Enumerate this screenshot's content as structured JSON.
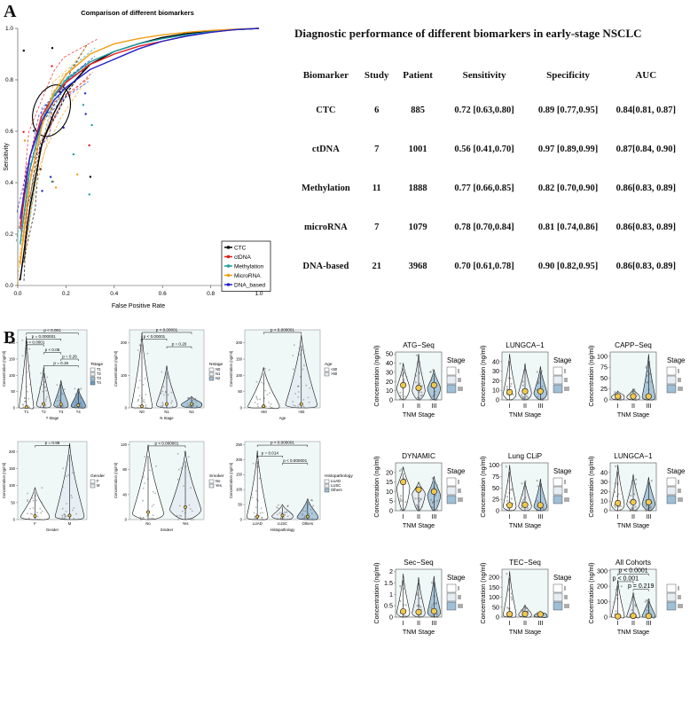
{
  "panel_labels": {
    "a": "A",
    "b": "B"
  },
  "roc": {
    "title": "Comparison of different biomarkers",
    "xlabel": "False Positive Rate",
    "ylabel": "Sensitivity",
    "xticks": [
      "0.0",
      "0.2",
      "0.4",
      "0.6",
      "0.8",
      "1.0"
    ],
    "yticks": [
      "0.0",
      "0.2",
      "0.4",
      "0.6",
      "0.8",
      "1.0"
    ],
    "legend": [
      {
        "label": "CTC",
        "color": "#000000"
      },
      {
        "label": "ctDNA",
        "color": "#e41a1c"
      },
      {
        "label": "Methylation",
        "color": "#1b9e9e"
      },
      {
        "label": "MicroRNA",
        "color": "#f39c12"
      },
      {
        "label": "DNA_based",
        "color": "#2222cc"
      }
    ]
  },
  "table": {
    "title": "Diagnostic performance of different biomarkers in early-stage NSCLC",
    "headers": [
      "Biomarker",
      "Study",
      "Patient",
      "Sensitivity",
      "Specificity",
      "AUC"
    ],
    "rows": [
      [
        "CTC",
        "6",
        "885",
        "0.72 [0.63,0.80]",
        "0.89 [0.77,0.95]",
        "0.84[0.81, 0.87]"
      ],
      [
        "ctDNA",
        "7",
        "1001",
        "0.56 [0.41,0.70]",
        "0.97 [0.89,0.99]",
        "0.87[0.84, 0.90]"
      ],
      [
        "Methylation",
        "11",
        "1888",
        "0.77 [0.66,0.85]",
        "0.82 [0.70,0.90]",
        "0.86[0.83, 0.89]"
      ],
      [
        "microRNA",
        "7",
        "1079",
        "0.78 [0.70,0.84]",
        "0.81 [0.74,0.86]",
        "0.86[0.83, 0.89]"
      ],
      [
        "DNA-based",
        "21",
        "3968",
        "0.70 [0.61,0.78]",
        "0.90 [0.82,0.95]",
        "0.86[0.83, 0.89]"
      ]
    ]
  },
  "chart_data": [
    {
      "type": "line",
      "title": "Comparison of different biomarkers",
      "xlabel": "False Positive Rate",
      "ylabel": "Sensitivity",
      "xlim": [
        0,
        1
      ],
      "ylim": [
        0,
        1
      ],
      "series": [
        {
          "name": "CTC",
          "color": "#000000",
          "x": [
            0.01,
            0.05,
            0.1,
            0.15,
            0.2,
            0.3,
            0.4,
            0.5,
            0.6,
            0.7,
            0.8,
            0.9,
            1.0
          ],
          "y": [
            0.02,
            0.3,
            0.55,
            0.67,
            0.76,
            0.86,
            0.91,
            0.94,
            0.965,
            0.98,
            0.99,
            0.995,
            1.0
          ]
        },
        {
          "name": "ctDNA",
          "color": "#e41a1c",
          "x": [
            0.01,
            0.05,
            0.1,
            0.15,
            0.2,
            0.3,
            0.4,
            0.5,
            0.6,
            0.7,
            0.8,
            0.9,
            1.0
          ],
          "y": [
            0.22,
            0.5,
            0.66,
            0.74,
            0.79,
            0.86,
            0.9,
            0.93,
            0.95,
            0.97,
            0.985,
            0.995,
            1.0
          ]
        },
        {
          "name": "Methylation",
          "color": "#1b9e9e",
          "x": [
            0.01,
            0.05,
            0.1,
            0.15,
            0.2,
            0.3,
            0.4,
            0.5,
            0.6,
            0.7,
            0.8,
            0.9,
            1.0
          ],
          "y": [
            0.16,
            0.45,
            0.64,
            0.74,
            0.8,
            0.87,
            0.91,
            0.94,
            0.96,
            0.975,
            0.987,
            0.995,
            1.0
          ]
        },
        {
          "name": "MicroRNA",
          "color": "#f39c12",
          "x": [
            0.01,
            0.05,
            0.1,
            0.15,
            0.2,
            0.3,
            0.4,
            0.5,
            0.6,
            0.7,
            0.8,
            0.9,
            1.0
          ],
          "y": [
            0.08,
            0.4,
            0.62,
            0.75,
            0.82,
            0.9,
            0.94,
            0.96,
            0.975,
            0.985,
            0.992,
            0.997,
            1.0
          ]
        },
        {
          "name": "DNA_based",
          "color": "#2222cc",
          "x": [
            0.01,
            0.05,
            0.1,
            0.15,
            0.2,
            0.3,
            0.4,
            0.5,
            0.6,
            0.7,
            0.8,
            0.9,
            1.0
          ],
          "y": [
            0.26,
            0.5,
            0.64,
            0.72,
            0.77,
            0.84,
            0.88,
            0.92,
            0.95,
            0.97,
            0.985,
            0.995,
            1.0
          ]
        }
      ]
    },
    {
      "type": "violin",
      "facets": [
        {
          "id": "tstage",
          "ylabel": "Concentration (ng/ml)",
          "xlabel": "T Stage",
          "categories": [
            "T1",
            "T2",
            "T3",
            "T4"
          ],
          "ylim": [
            0,
            240
          ],
          "yticks": [
            0,
            50,
            100,
            150,
            200
          ],
          "medians": [
            2,
            12,
            11,
            8
          ],
          "tops": [
            220,
            125,
            85,
            60
          ],
          "legend_title": "Tstage",
          "legend": [
            "T1",
            "T2",
            "T3",
            "T4"
          ],
          "pvalues": [
            {
              "label": "p < 0.001",
              "from": 0,
              "to": 3,
              "y": 230
            },
            {
              "label": "p = 0.000001",
              "from": 0,
              "to": 2,
              "y": 212
            },
            {
              "label": "p < 0.0001",
              "from": 0,
              "to": 1,
              "y": 194
            },
            {
              "label": "p < 0.05",
              "from": 1,
              "to": 2,
              "y": 170
            },
            {
              "label": "p = 0.26",
              "from": 2,
              "to": 3,
              "y": 150
            },
            {
              "label": "p = 0.15",
              "from": 1,
              "to": 3,
              "y": 130
            }
          ]
        },
        {
          "id": "nstage",
          "ylabel": "Concentration (ng/ml)",
          "xlabel": "N Stage",
          "categories": [
            "N0",
            "N1",
            "N2"
          ],
          "ylim": [
            0,
            240
          ],
          "yticks": [
            0,
            100,
            200
          ],
          "medians": [
            5,
            12,
            12
          ],
          "tops": [
            230,
            130,
            35
          ],
          "legend_title": "Nstage",
          "legend": [
            "N0",
            "N1",
            "N2"
          ],
          "pvalues": [
            {
              "label": "p < 0.00001",
              "from": 0,
              "to": 2,
              "y": 232
            },
            {
              "label": "p < 0.00001",
              "from": 0,
              "to": 1,
              "y": 212
            },
            {
              "label": "p = 0.20",
              "from": 1,
              "to": 2,
              "y": 188
            }
          ]
        },
        {
          "id": "age",
          "ylabel": "Concentration (ng/ml)",
          "xlabel": "Age",
          "categories": [
            "<60",
            ">60"
          ],
          "ylim": [
            0,
            240
          ],
          "yticks": [
            0,
            50,
            100,
            150,
            200
          ],
          "medians": [
            5,
            12
          ],
          "tops": [
            125,
            225
          ],
          "legend_title": "Age",
          "legend": [
            "<60",
            ">60"
          ],
          "pvalues": [
            {
              "label": "p < 0.000001",
              "from": 0,
              "to": 1,
              "y": 232
            }
          ]
        },
        {
          "id": "gender",
          "ylabel": "Concentration (ng/ml)",
          "xlabel": "Gender",
          "categories": [
            "F",
            "M"
          ],
          "ylim": [
            0,
            230
          ],
          "yticks": [
            0,
            50,
            100,
            150,
            200
          ],
          "medians": [
            10,
            12
          ],
          "tops": [
            95,
            225
          ],
          "legend_title": "Gender",
          "legend": [
            "F",
            "M"
          ],
          "pvalues": [
            {
              "label": "p = 0.98",
              "from": 0,
              "to": 1,
              "y": 218
            }
          ]
        },
        {
          "id": "smoker",
          "ylabel": "Concentration (ng/ml)",
          "xlabel": "Smoker",
          "categories": [
            "No",
            "Yes"
          ],
          "ylim": [
            0,
            125
          ],
          "yticks": [
            0,
            40,
            80,
            120
          ],
          "medians": [
            12,
            20
          ],
          "tops": [
            120,
            110
          ],
          "legend_title": "Smoker",
          "legend": [
            "No",
            "Yes"
          ],
          "pvalues": [
            {
              "label": "p < 0.000001",
              "from": 0,
              "to": 1,
              "y": 118
            }
          ]
        },
        {
          "id": "histo",
          "ylabel": "Concentration (ng/ml)",
          "xlabel": "Histopathology",
          "categories": [
            "LUAD",
            "LUSC",
            "Others"
          ],
          "ylim": [
            0,
            260
          ],
          "yticks": [
            0,
            50,
            100,
            150,
            200,
            250
          ],
          "medians": [
            10,
            14,
            10
          ],
          "tops": [
            230,
            50,
            70
          ],
          "legend_title": "Histopathology",
          "legend": [
            "LUAD",
            "LUSC",
            "Others"
          ],
          "pvalues": [
            {
              "label": "p < 0.000001",
              "from": 0,
              "to": 2,
              "y": 248
            },
            {
              "label": "p = 0.014",
              "from": 0,
              "to": 1,
              "y": 212
            },
            {
              "label": "p < 0.000001",
              "from": 1,
              "to": 2,
              "y": 188
            }
          ]
        },
        {
          "id": "atg",
          "title": "ATG−Seq",
          "ylabel": "Concentration (ng/ml)",
          "xlabel": "TNM Stage",
          "categories": [
            "I",
            "II",
            "III"
          ],
          "ylim": [
            0,
            52
          ],
          "yticks": [
            0,
            10,
            20,
            30,
            40,
            50
          ],
          "medians": [
            16,
            13,
            16
          ],
          "tops": [
            40,
            50,
            33
          ],
          "legend_title": "Stage",
          "legend": [
            "I",
            "II",
            "III"
          ]
        },
        {
          "id": "lungca1a",
          "title": "LUNGCA−1",
          "ylabel": "Concentration (ng/ml)",
          "xlabel": "TNM Stage",
          "categories": [
            "I",
            "II",
            "III"
          ],
          "ylim": [
            0,
            50
          ],
          "yticks": [
            0,
            10,
            20,
            30,
            40
          ],
          "medians": [
            8,
            9,
            9
          ],
          "tops": [
            48,
            38,
            35
          ],
          "legend_title": "Stage",
          "legend": [
            "I",
            "II",
            "III"
          ]
        },
        {
          "id": "capp",
          "title": "CAPP−Seq",
          "ylabel": "Concentration (ng/ml)",
          "xlabel": "TNM Stage",
          "categories": [
            "I",
            "II",
            "III"
          ],
          "ylim": [
            0,
            110
          ],
          "yticks": [
            0,
            25,
            50,
            75,
            100
          ],
          "medians": [
            8,
            8,
            8
          ],
          "tops": [
            20,
            25,
            105
          ],
          "legend_title": "Stage",
          "legend": [
            "I",
            "II",
            "III"
          ]
        },
        {
          "id": "dynamic",
          "title": "DYNAMIC",
          "ylabel": "Concentration (ng/ml)",
          "xlabel": "TNM Stage",
          "categories": [
            "I",
            "II",
            "III"
          ],
          "ylim": [
            0,
            25
          ],
          "yticks": [
            0,
            5,
            10,
            15,
            20
          ],
          "medians": [
            15,
            11,
            10
          ],
          "tops": [
            23,
            15,
            18
          ],
          "legend_title": "Stage",
          "legend": [
            "I",
            "II",
            "III"
          ]
        },
        {
          "id": "lungclip",
          "title": "Lung CLiP",
          "ylabel": "Concentration (ng/ml)",
          "xlabel": "TNM Stage",
          "categories": [
            "I",
            "II",
            "III"
          ],
          "ylim": [
            0,
            105
          ],
          "yticks": [
            0,
            25,
            50,
            75,
            100
          ],
          "medians": [
            12,
            13,
            12
          ],
          "tops": [
            100,
            65,
            70
          ],
          "legend_title": "Stage",
          "legend": [
            "I",
            "II",
            "III"
          ]
        },
        {
          "id": "lungca1b",
          "title": "LUNGCA−1",
          "ylabel": "Concentration (ng/ml)",
          "xlabel": "TNM Stage",
          "categories": [
            "I",
            "II",
            "III"
          ],
          "ylim": [
            0,
            50
          ],
          "yticks": [
            0,
            10,
            20,
            30,
            40
          ],
          "medians": [
            8,
            9,
            9
          ],
          "tops": [
            48,
            38,
            35
          ],
          "legend_title": "Stage",
          "legend": [
            "I",
            "II",
            "III"
          ]
        },
        {
          "id": "secseq",
          "title": "Sec−Seq",
          "ylabel": "Concentration (ng/ml)",
          "xlabel": "TNM Stage",
          "categories": [
            "I",
            "II",
            "III"
          ],
          "ylim": [
            0,
            2.1
          ],
          "yticks": [
            0,
            0.5,
            1.0,
            1.5,
            2.0
          ],
          "medians": [
            0.25,
            0.22,
            0.26
          ],
          "tops": [
            1.9,
            1.75,
            1.8
          ],
          "legend_title": "Stage",
          "legend": [
            "I",
            "II",
            "III"
          ]
        },
        {
          "id": "tecseq",
          "title": "TEC−Seq",
          "ylabel": "Concentration (ng/ml)",
          "xlabel": "TNM Stage",
          "categories": [
            "I",
            "II",
            "III"
          ],
          "ylim": [
            0,
            240
          ],
          "yticks": [
            0,
            50,
            100,
            150,
            200
          ],
          "medians": [
            15,
            16,
            14
          ],
          "tops": [
            230,
            60,
            25
          ],
          "legend_title": "Stage",
          "legend": [
            "I",
            "II",
            "III"
          ]
        },
        {
          "id": "allcohorts",
          "title": "All Cohorts",
          "ylabel": "Concentration (ng/ml)",
          "xlabel": "TNM Stage",
          "categories": [
            "I",
            "II",
            "III"
          ],
          "ylim": [
            0,
            310
          ],
          "yticks": [
            0,
            100,
            200,
            300
          ],
          "medians": [
            5,
            8,
            7
          ],
          "tops": [
            240,
            160,
            120
          ],
          "legend_title": "",
          "legend": [
            "I",
            "II",
            "III"
          ],
          "pvalues": [
            {
              "label": "p < 0.0001",
              "from": 0,
              "to": 2,
              "y": 280
            },
            {
              "label": "p < 0.001",
              "from": 0,
              "to": 1,
              "y": 230
            },
            {
              "label": "p = 0.219",
              "from": 1,
              "to": 2,
              "y": 180
            }
          ]
        }
      ]
    }
  ]
}
